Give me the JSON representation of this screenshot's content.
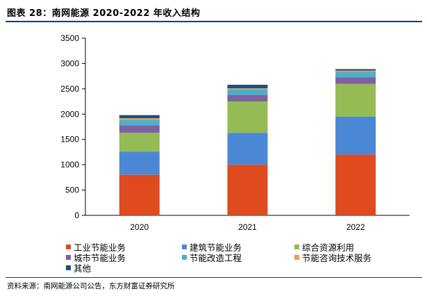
{
  "figure": {
    "title": "图表 28：南网能源 2020-2022 年收入结构",
    "source": "资料来源：南网能源公司公告，东方财富证券研究所"
  },
  "chart_data": {
    "type": "bar",
    "stacked": true,
    "categories": [
      "2020",
      "2021",
      "2022"
    ],
    "ylim": [
      0,
      3500
    ],
    "yticks": [
      0,
      500,
      1000,
      1500,
      2000,
      2500,
      3000,
      3500
    ],
    "grid": false,
    "legend_position": "bottom",
    "series": [
      {
        "name": "工业节能业务",
        "color": "#e04a1f",
        "values": [
          800,
          1000,
          1200
        ]
      },
      {
        "name": "建筑节能业务",
        "color": "#4a88d6",
        "values": [
          460,
          630,
          750
        ]
      },
      {
        "name": "综合资源利用",
        "color": "#95bb55",
        "values": [
          370,
          620,
          650
        ]
      },
      {
        "name": "城市节能业务",
        "color": "#7e62a1",
        "values": [
          150,
          130,
          130
        ]
      },
      {
        "name": "节能改造工程",
        "color": "#4bb0cc",
        "values": [
          110,
          110,
          110
        ]
      },
      {
        "name": "节能咨询技术服务",
        "color": "#f09a4a",
        "values": [
          30,
          20,
          20
        ]
      },
      {
        "name": "其他",
        "color": "#1f4e79",
        "values": [
          60,
          70,
          30
        ]
      }
    ]
  }
}
